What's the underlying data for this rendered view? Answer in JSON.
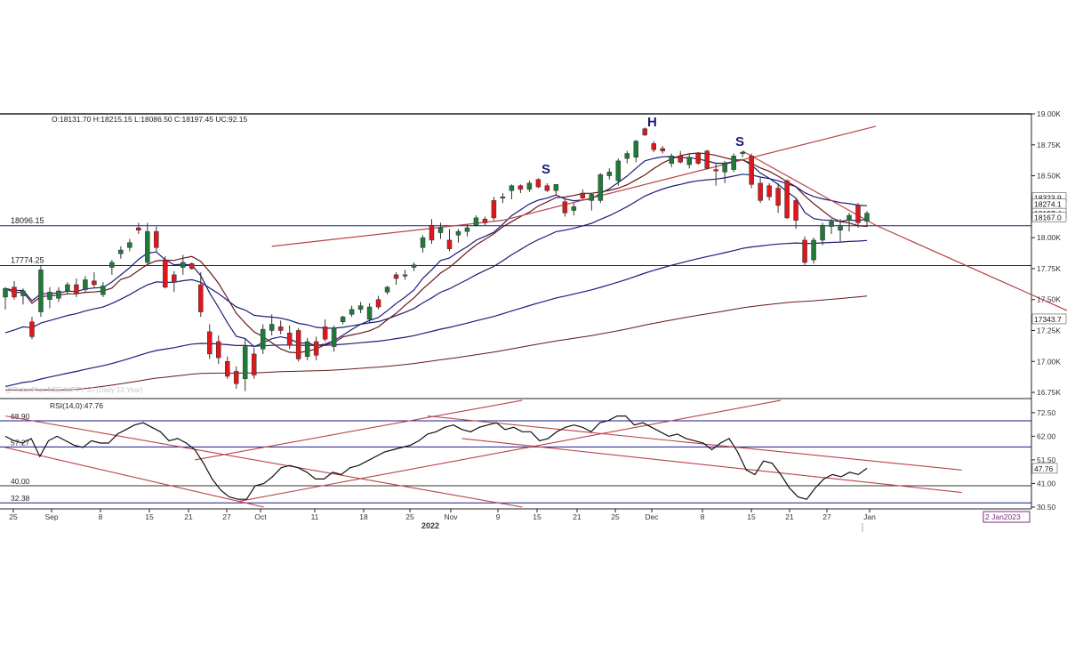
{
  "header": {
    "ohlc": "O:18131.70  H:18215.15  L:18086.50  C:18197.45  UC:92.15",
    "watermark": "@TickerPlus NSE:NIFTY 50 (Daily 10 Year)"
  },
  "colors": {
    "up_candle": "#1f7a3a",
    "down_candle": "#e0161b",
    "ma_fast": "#1c1c7a",
    "ma_slow": "#6a1717",
    "trendline": "#b8434a",
    "level_line": "#1a1a8a",
    "pattern_label": "#1a1a80",
    "axis_text": "#333333"
  },
  "pattern_labels": [
    "S",
    "H",
    "S"
  ],
  "chart_data": [
    {
      "type": "candlestick",
      "title": "",
      "y_ticks": [
        "19.00K",
        "18.75K",
        "18.50K",
        "18.25K",
        "18.00K",
        "17.75K",
        "17.50K",
        "17.25K",
        "17.00K",
        "16.75K"
      ],
      "ylim": [
        16700,
        19000
      ],
      "x_tick_labels": [
        "25",
        "Sep",
        "8",
        "15",
        "21",
        "27",
        "Oct",
        "11",
        "18",
        "25",
        "Nov",
        "9",
        "15",
        "21",
        "25",
        "Dec",
        "8",
        "15",
        "21",
        "27",
        "Jan"
      ],
      "x_year_label": "2022",
      "x_end_badge": "2 Jan2023",
      "levels": [
        {
          "label": "18096.15",
          "value": 18096.15
        },
        {
          "label": "17774.25",
          "value": 17774.25
        }
      ],
      "price_tags": [
        "18323.9",
        "18274.1",
        "18197.4",
        "18167.0",
        "17343.7"
      ],
      "candles": [
        {
          "o": 17520,
          "h": 17600,
          "l": 17420,
          "c": 17590
        },
        {
          "o": 17600,
          "h": 17650,
          "l": 17500,
          "c": 17520
        },
        {
          "o": 17530,
          "h": 17590,
          "l": 17460,
          "c": 17570
        },
        {
          "o": 17320,
          "h": 17360,
          "l": 17180,
          "c": 17200
        },
        {
          "o": 17400,
          "h": 17780,
          "l": 17360,
          "c": 17740
        },
        {
          "o": 17500,
          "h": 17600,
          "l": 17430,
          "c": 17560
        },
        {
          "o": 17510,
          "h": 17600,
          "l": 17480,
          "c": 17570
        },
        {
          "o": 17570,
          "h": 17640,
          "l": 17540,
          "c": 17620
        },
        {
          "o": 17620,
          "h": 17670,
          "l": 17520,
          "c": 17550
        },
        {
          "o": 17580,
          "h": 17690,
          "l": 17560,
          "c": 17660
        },
        {
          "o": 17650,
          "h": 17720,
          "l": 17600,
          "c": 17620
        },
        {
          "o": 17540,
          "h": 17640,
          "l": 17520,
          "c": 17610
        },
        {
          "o": 17760,
          "h": 17820,
          "l": 17700,
          "c": 17800
        },
        {
          "o": 17870,
          "h": 17930,
          "l": 17830,
          "c": 17900
        },
        {
          "o": 17920,
          "h": 17990,
          "l": 17890,
          "c": 17960
        },
        {
          "o": 18080,
          "h": 18120,
          "l": 18030,
          "c": 18060
        },
        {
          "o": 17800,
          "h": 18120,
          "l": 17780,
          "c": 18050
        },
        {
          "o": 18050,
          "h": 18090,
          "l": 17880,
          "c": 17920
        },
        {
          "o": 17820,
          "h": 17850,
          "l": 17590,
          "c": 17600
        },
        {
          "o": 17700,
          "h": 17730,
          "l": 17560,
          "c": 17640
        },
        {
          "o": 17760,
          "h": 17860,
          "l": 17700,
          "c": 17800
        },
        {
          "o": 17790,
          "h": 17800,
          "l": 17740,
          "c": 17750
        },
        {
          "o": 17620,
          "h": 17720,
          "l": 17360,
          "c": 17400
        },
        {
          "o": 17240,
          "h": 17300,
          "l": 17020,
          "c": 17060
        },
        {
          "o": 17160,
          "h": 17210,
          "l": 16980,
          "c": 17030
        },
        {
          "o": 17000,
          "h": 17040,
          "l": 16860,
          "c": 16880
        },
        {
          "o": 16920,
          "h": 16960,
          "l": 16780,
          "c": 16820
        },
        {
          "o": 16860,
          "h": 17180,
          "l": 16760,
          "c": 17120
        },
        {
          "o": 17060,
          "h": 17110,
          "l": 16860,
          "c": 16890
        },
        {
          "o": 17100,
          "h": 17300,
          "l": 17060,
          "c": 17260
        },
        {
          "o": 17250,
          "h": 17380,
          "l": 17210,
          "c": 17300
        },
        {
          "o": 17280,
          "h": 17330,
          "l": 17220,
          "c": 17250
        },
        {
          "o": 17230,
          "h": 17290,
          "l": 17100,
          "c": 17130
        },
        {
          "o": 17250,
          "h": 17270,
          "l": 17000,
          "c": 17020
        },
        {
          "o": 17040,
          "h": 17190,
          "l": 17010,
          "c": 17160
        },
        {
          "o": 17160,
          "h": 17200,
          "l": 17010,
          "c": 17050
        },
        {
          "o": 17280,
          "h": 17340,
          "l": 17160,
          "c": 17180
        },
        {
          "o": 17120,
          "h": 17290,
          "l": 17080,
          "c": 17270
        },
        {
          "o": 17320,
          "h": 17370,
          "l": 17300,
          "c": 17360
        },
        {
          "o": 17380,
          "h": 17450,
          "l": 17360,
          "c": 17420
        },
        {
          "o": 17420,
          "h": 17480,
          "l": 17390,
          "c": 17450
        },
        {
          "o": 17340,
          "h": 17470,
          "l": 17310,
          "c": 17440
        },
        {
          "o": 17500,
          "h": 17530,
          "l": 17420,
          "c": 17440
        },
        {
          "o": 17560,
          "h": 17610,
          "l": 17540,
          "c": 17600
        },
        {
          "o": 17700,
          "h": 17720,
          "l": 17620,
          "c": 17670
        },
        {
          "o": 17700,
          "h": 17740,
          "l": 17660,
          "c": 17700
        },
        {
          "o": 17760,
          "h": 17800,
          "l": 17730,
          "c": 17780
        },
        {
          "o": 17920,
          "h": 18020,
          "l": 17880,
          "c": 18000
        },
        {
          "o": 18100,
          "h": 18150,
          "l": 17950,
          "c": 17980
        },
        {
          "o": 18040,
          "h": 18120,
          "l": 17990,
          "c": 18080
        },
        {
          "o": 17980,
          "h": 18070,
          "l": 17890,
          "c": 17910
        },
        {
          "o": 18020,
          "h": 18070,
          "l": 17960,
          "c": 18050
        },
        {
          "o": 18050,
          "h": 18110,
          "l": 18010,
          "c": 18080
        },
        {
          "o": 18100,
          "h": 18180,
          "l": 18090,
          "c": 18160
        },
        {
          "o": 18150,
          "h": 18170,
          "l": 18100,
          "c": 18120
        },
        {
          "o": 18300,
          "h": 18330,
          "l": 18140,
          "c": 18160
        },
        {
          "o": 18320,
          "h": 18360,
          "l": 18280,
          "c": 18330
        },
        {
          "o": 18380,
          "h": 18430,
          "l": 18310,
          "c": 18420
        },
        {
          "o": 18420,
          "h": 18430,
          "l": 18360,
          "c": 18390
        },
        {
          "o": 18390,
          "h": 18460,
          "l": 18370,
          "c": 18440
        },
        {
          "o": 18470,
          "h": 18480,
          "l": 18400,
          "c": 18410
        },
        {
          "o": 18420,
          "h": 18440,
          "l": 18370,
          "c": 18380
        },
        {
          "o": 18380,
          "h": 18430,
          "l": 18340,
          "c": 18430
        },
        {
          "o": 18290,
          "h": 18320,
          "l": 18170,
          "c": 18200
        },
        {
          "o": 18220,
          "h": 18280,
          "l": 18180,
          "c": 18250
        },
        {
          "o": 18360,
          "h": 18390,
          "l": 18310,
          "c": 18320
        },
        {
          "o": 18300,
          "h": 18360,
          "l": 18220,
          "c": 18350
        },
        {
          "o": 18300,
          "h": 18520,
          "l": 18280,
          "c": 18510
        },
        {
          "o": 18500,
          "h": 18560,
          "l": 18470,
          "c": 18530
        },
        {
          "o": 18460,
          "h": 18640,
          "l": 18420,
          "c": 18620
        },
        {
          "o": 18640,
          "h": 18700,
          "l": 18600,
          "c": 18680
        },
        {
          "o": 18650,
          "h": 18790,
          "l": 18610,
          "c": 18780
        },
        {
          "o": 18880,
          "h": 18890,
          "l": 18820,
          "c": 18830
        },
        {
          "o": 18760,
          "h": 18780,
          "l": 18690,
          "c": 18710
        },
        {
          "o": 18720,
          "h": 18740,
          "l": 18680,
          "c": 18700
        },
        {
          "o": 18600,
          "h": 18680,
          "l": 18570,
          "c": 18660
        },
        {
          "o": 18660,
          "h": 18700,
          "l": 18600,
          "c": 18610
        },
        {
          "o": 18590,
          "h": 18680,
          "l": 18560,
          "c": 18650
        },
        {
          "o": 18680,
          "h": 18690,
          "l": 18590,
          "c": 18600
        },
        {
          "o": 18700,
          "h": 18710,
          "l": 18550,
          "c": 18560
        },
        {
          "o": 18550,
          "h": 18600,
          "l": 18420,
          "c": 18540
        },
        {
          "o": 18530,
          "h": 18620,
          "l": 18440,
          "c": 18600
        },
        {
          "o": 18550,
          "h": 18680,
          "l": 18530,
          "c": 18660
        },
        {
          "o": 18680,
          "h": 18700,
          "l": 18650,
          "c": 18690
        },
        {
          "o": 18660,
          "h": 18680,
          "l": 18400,
          "c": 18430
        },
        {
          "o": 18440,
          "h": 18490,
          "l": 18280,
          "c": 18300
        },
        {
          "o": 18420,
          "h": 18440,
          "l": 18300,
          "c": 18330
        },
        {
          "o": 18400,
          "h": 18440,
          "l": 18200,
          "c": 18260
        },
        {
          "o": 18460,
          "h": 18470,
          "l": 18150,
          "c": 18160
        },
        {
          "o": 18300,
          "h": 18320,
          "l": 18070,
          "c": 18140
        },
        {
          "o": 17980,
          "h": 18010,
          "l": 17780,
          "c": 17800
        },
        {
          "o": 17820,
          "h": 18000,
          "l": 17790,
          "c": 17980
        },
        {
          "o": 17980,
          "h": 18120,
          "l": 17940,
          "c": 18100
        },
        {
          "o": 18090,
          "h": 18150,
          "l": 18030,
          "c": 18130
        },
        {
          "o": 18060,
          "h": 18150,
          "l": 17970,
          "c": 18100
        },
        {
          "o": 18140,
          "h": 18200,
          "l": 18050,
          "c": 18180
        },
        {
          "o": 18260,
          "h": 18280,
          "l": 18080,
          "c": 18120
        },
        {
          "o": 18131.7,
          "h": 18215.15,
          "l": 18086.5,
          "c": 18197.45
        }
      ],
      "trendlines": [
        {
          "from": [
            30,
            17930
          ],
          "to": [
            56,
            18140
          ]
        },
        {
          "from": [
            56,
            18140
          ],
          "to": [
            98,
            18900
          ]
        },
        {
          "from": [
            83,
            18700
          ],
          "to": [
            98,
            18100
          ]
        },
        {
          "from": [
            98,
            18100
          ],
          "to": [
            123,
            17300
          ]
        }
      ]
    },
    {
      "type": "line",
      "name_label": "RSI(14,0):47.76",
      "y_ticks": [
        "72.50",
        "62.00",
        "51.50",
        "41.00",
        "30.50"
      ],
      "ylim": [
        30.5,
        76
      ],
      "levels": [
        {
          "label": "68.90",
          "value": 68.9
        },
        {
          "label": "57.27",
          "value": 57.27
        },
        {
          "label": "40.00",
          "value": 40.0
        },
        {
          "label": "32.38",
          "value": 32.38
        }
      ],
      "last_value_tag": "47.76",
      "values": [
        62,
        60,
        59,
        61,
        53,
        60,
        62,
        60,
        58,
        57,
        60,
        59,
        59,
        63,
        65,
        67,
        68,
        66,
        64,
        60,
        61,
        59,
        56,
        50,
        43,
        38,
        35,
        34,
        34,
        40,
        41,
        44,
        48,
        49,
        48,
        46,
        43,
        43,
        46,
        45,
        48,
        49,
        51,
        53,
        55,
        56,
        57,
        58,
        60,
        63,
        64,
        66,
        67,
        65,
        64,
        66,
        67,
        68,
        65,
        66,
        64,
        64,
        60,
        61,
        64,
        66,
        67,
        66,
        64,
        68,
        69,
        71,
        71,
        67,
        68,
        66,
        64,
        62,
        63,
        61,
        60,
        59,
        56,
        59,
        61,
        55,
        47,
        45,
        51,
        50,
        45,
        39,
        35,
        34,
        39,
        43,
        45,
        44,
        46,
        45,
        47.76
      ],
      "trendlines": [
        {
          "from": [
            0,
            57
          ],
          "to": [
            30,
            30.5
          ]
        },
        {
          "from": [
            0,
            71
          ],
          "to": [
            60,
            30.5
          ]
        },
        {
          "from": [
            22,
            51.5
          ],
          "to": [
            60,
            78
          ]
        },
        {
          "from": [
            27,
            33
          ],
          "to": [
            90,
            78
          ]
        },
        {
          "from": [
            49,
            71
          ],
          "to": [
            111,
            47
          ]
        },
        {
          "from": [
            53,
            61
          ],
          "to": [
            111,
            37
          ]
        }
      ]
    }
  ]
}
